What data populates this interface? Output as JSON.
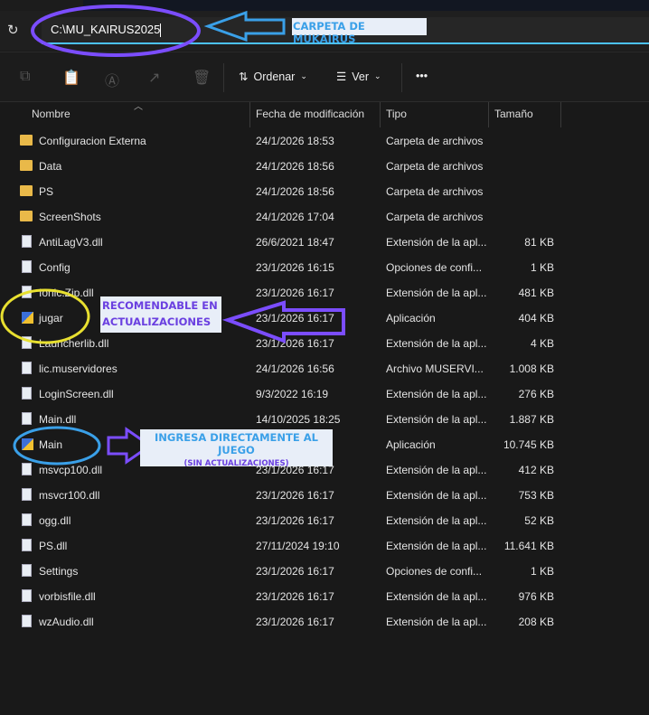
{
  "address": {
    "path": "C:\\MU_KAIRUS2025"
  },
  "toolbar": {
    "sort_label": "Ordenar",
    "view_label": "Ver",
    "more": "•••"
  },
  "columns": {
    "name": "Nombre",
    "date": "Fecha de modificación",
    "type": "Tipo",
    "size": "Tamaño"
  },
  "files": [
    {
      "name": "Configuracion Externa",
      "date": "24/1/2026 18:53",
      "type": "Carpeta de archivos",
      "size": "",
      "icon": "folder"
    },
    {
      "name": "Data",
      "date": "24/1/2026 18:56",
      "type": "Carpeta de archivos",
      "size": "",
      "icon": "folder"
    },
    {
      "name": "PS",
      "date": "24/1/2026 18:56",
      "type": "Carpeta de archivos",
      "size": "",
      "icon": "folder"
    },
    {
      "name": "ScreenShots",
      "date": "24/1/2026 17:04",
      "type": "Carpeta de archivos",
      "size": "",
      "icon": "folder"
    },
    {
      "name": "AntiLagV3.dll",
      "date": "26/6/2021 18:47",
      "type": "Extensión de la apl...",
      "size": "81 KB",
      "icon": "file"
    },
    {
      "name": "Config",
      "date": "23/1/2026 16:15",
      "type": "Opciones de confi...",
      "size": "1 KB",
      "icon": "file"
    },
    {
      "name": "Ionic.Zip.dll",
      "date": "23/1/2026 16:17",
      "type": "Extensión de la apl...",
      "size": "481 KB",
      "icon": "file"
    },
    {
      "name": "jugar",
      "date": "23/1/2026 16:17",
      "type": "Aplicación",
      "size": "404 KB",
      "icon": "exe"
    },
    {
      "name": "Launcherlib.dll",
      "date": "23/1/2026 16:17",
      "type": "Extensión de la apl...",
      "size": "4 KB",
      "icon": "file"
    },
    {
      "name": "lic.muservidores",
      "date": "24/1/2026 16:56",
      "type": "Archivo MUSERVI...",
      "size": "1.008 KB",
      "icon": "file"
    },
    {
      "name": "LoginScreen.dll",
      "date": "9/3/2022 16:19",
      "type": "Extensión de la apl...",
      "size": "276 KB",
      "icon": "file"
    },
    {
      "name": "Main.dll",
      "date": "14/10/2025 18:25",
      "type": "Extensión de la apl...",
      "size": "1.887 KB",
      "icon": "file"
    },
    {
      "name": "Main",
      "date": "",
      "type": "Aplicación",
      "size": "10.745 KB",
      "icon": "exe"
    },
    {
      "name": "msvcp100.dll",
      "date": "23/1/2026 16:17",
      "type": "Extensión de la apl...",
      "size": "412 KB",
      "icon": "file"
    },
    {
      "name": "msvcr100.dll",
      "date": "23/1/2026 16:17",
      "type": "Extensión de la apl...",
      "size": "753 KB",
      "icon": "file"
    },
    {
      "name": "ogg.dll",
      "date": "23/1/2026 16:17",
      "type": "Extensión de la apl...",
      "size": "52 KB",
      "icon": "file"
    },
    {
      "name": "PS.dll",
      "date": "27/11/2024 19:10",
      "type": "Extensión de la apl...",
      "size": "11.641 KB",
      "icon": "file"
    },
    {
      "name": "Settings",
      "date": "23/1/2026 16:17",
      "type": "Opciones de confi...",
      "size": "1 KB",
      "icon": "file"
    },
    {
      "name": "vorbisfile.dll",
      "date": "23/1/2026 16:17",
      "type": "Extensión de la apl...",
      "size": "976 KB",
      "icon": "file"
    },
    {
      "name": "wzAudio.dll",
      "date": "23/1/2026 16:17",
      "type": "Extensión de la apl...",
      "size": "208 KB",
      "icon": "file"
    }
  ],
  "annotations": {
    "folder_note": "CARPETA DE MUKAIRUS",
    "jugar_note_1": "RECOMENDABLE EN",
    "jugar_note_2": "ACTUALIZACIONES",
    "main_note_1": "INGRESA DIRECTAMENTE AL JUEGO",
    "main_note_2": "(SIN ACTUALIZACIONES)",
    "colors": {
      "purple": "#7b4dff",
      "blue": "#3aa0e8",
      "yellow": "#e8e030"
    }
  }
}
